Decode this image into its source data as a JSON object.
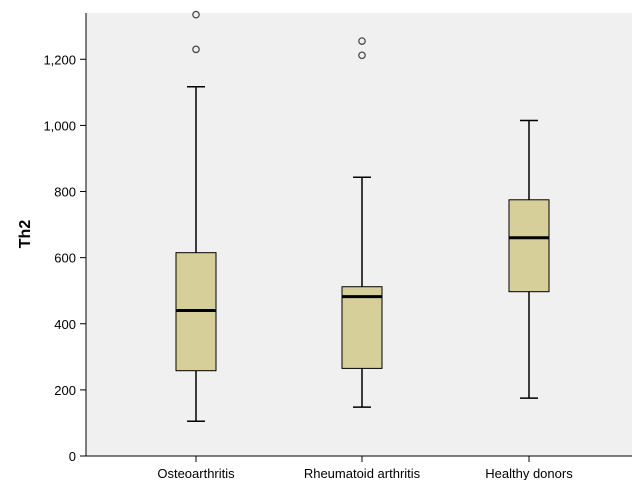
{
  "chart_data": {
    "type": "boxplot",
    "title": "",
    "xlabel": "",
    "ylabel": "Th2",
    "ylim": [
      0,
      1340
    ],
    "yticks": [
      0,
      200,
      400,
      600,
      800,
      1000,
      1200
    ],
    "ytick_labels": [
      "0",
      "200",
      "400",
      "600",
      "800",
      "1,000",
      "1,200"
    ],
    "grid": false,
    "colors": {
      "box_fill": "#d6cf99",
      "plot_bg": "#f0f0f0",
      "stroke": "#000000",
      "outlier_stroke": "#4d4d4d"
    },
    "categories": [
      "Osteoarthritis",
      "Rheumatoid arthritis",
      "Healthy donors"
    ],
    "boxes": [
      {
        "name": "Osteoarthritis",
        "min": 105,
        "q1": 258,
        "median": 440,
        "q3": 615,
        "max": 1117,
        "outliers": [
          1230,
          1335
        ]
      },
      {
        "name": "Rheumatoid arthritis",
        "min": 148,
        "q1": 265,
        "median": 482,
        "q3": 512,
        "max": 843,
        "outliers": [
          1212,
          1255
        ]
      },
      {
        "name": "Healthy donors",
        "min": 175,
        "q1": 497,
        "median": 660,
        "q3": 775,
        "max": 1015,
        "outliers": []
      }
    ]
  }
}
